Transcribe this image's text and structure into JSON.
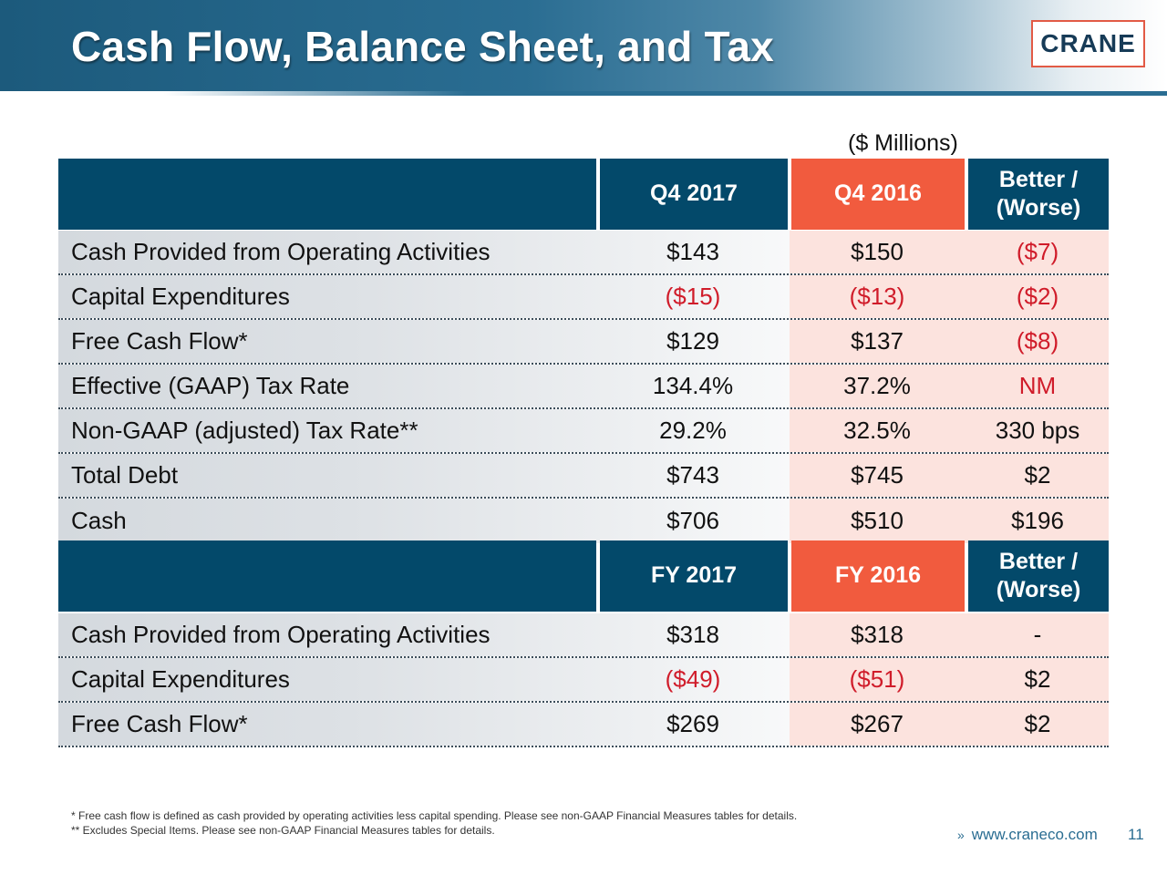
{
  "header": {
    "title": "Cash Flow, Balance Sheet, and Tax",
    "logo_text": "CRANE"
  },
  "units_label": "($ Millions)",
  "quarter_table": {
    "columns": [
      "Q4 2017",
      "Q4 2016",
      "Better /\n(Worse)"
    ],
    "col3_line1": "Better /",
    "col3_line2": "(Worse)",
    "rows": [
      {
        "label": "Cash Provided from Operating Activities",
        "v1": "$143",
        "v2": "$150",
        "v3": "($7)"
      },
      {
        "label": "Capital Expenditures",
        "v1": "($15)",
        "v2": "($13)",
        "v3": "($2)"
      },
      {
        "label": "Free Cash Flow*",
        "v1": "$129",
        "v2": "$137",
        "v3": "($8)"
      },
      {
        "label": "Effective (GAAP) Tax Rate",
        "v1": "134.4%",
        "v2": "37.2%",
        "v3": "NM"
      },
      {
        "label": "Non-GAAP (adjusted) Tax Rate**",
        "v1": "29.2%",
        "v2": "32.5%",
        "v3": "330 bps"
      },
      {
        "label": "Total Debt",
        "v1": "$743",
        "v2": "$745",
        "v3": "$2"
      },
      {
        "label": "Cash",
        "v1": "$706",
        "v2": "$510",
        "v3": "$196"
      }
    ]
  },
  "year_table": {
    "columns": [
      "FY 2017",
      "FY 2016",
      "Better /\n(Worse)"
    ],
    "col3_line1": "Better /",
    "col3_line2": "(Worse)",
    "rows": [
      {
        "label": "Cash Provided from Operating Activities",
        "v1": "$318",
        "v2": "$318",
        "v3": "-"
      },
      {
        "label": "Capital Expenditures",
        "v1": "($49)",
        "v2": "($51)",
        "v3": "$2"
      },
      {
        "label": "Free Cash Flow*",
        "v1": "$269",
        "v2": "$267",
        "v3": "$2"
      }
    ]
  },
  "footnotes": [
    "*  Free cash flow is defined as cash provided by operating activities less capital spending. Please see non-GAAP Financial Measures tables for details.",
    "** Excludes Special Items. Please see non-GAAP Financial Measures tables for details."
  ],
  "footer": {
    "chevron": "»",
    "url": "www.craneco.com",
    "page_number": "11"
  },
  "colors": {
    "navy": "#03496a",
    "orange": "#f15b3e",
    "negative_red": "#d01c2a",
    "pink_highlight": "#fce3de"
  }
}
